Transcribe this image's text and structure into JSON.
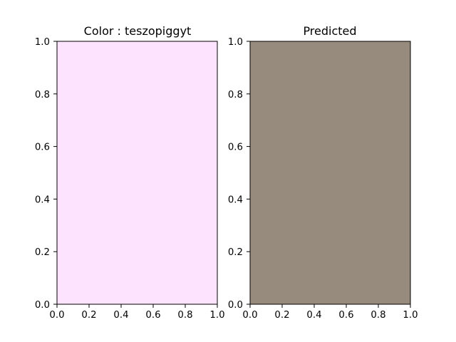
{
  "chart_data": [
    {
      "type": "area",
      "title": "Color : teszopiggyt",
      "fill_color": "#fee3fe",
      "x_ticks": [
        "0.0",
        "0.2",
        "0.4",
        "0.6",
        "0.8",
        "1.0"
      ],
      "y_ticks": [
        "0.0",
        "0.2",
        "0.4",
        "0.6",
        "0.8",
        "1.0"
      ],
      "xlim": [
        0,
        1
      ],
      "ylim": [
        0,
        1
      ],
      "grid": false
    },
    {
      "type": "area",
      "title": "Predicted",
      "fill_color": "#978b7e",
      "x_ticks": [
        "0.0",
        "0.2",
        "0.4",
        "0.6",
        "0.8",
        "1.0"
      ],
      "y_ticks": [
        "0.0",
        "0.2",
        "0.4",
        "0.6",
        "0.8",
        "1.0"
      ],
      "xlim": [
        0,
        1
      ],
      "ylim": [
        0,
        1
      ],
      "grid": false
    }
  ]
}
